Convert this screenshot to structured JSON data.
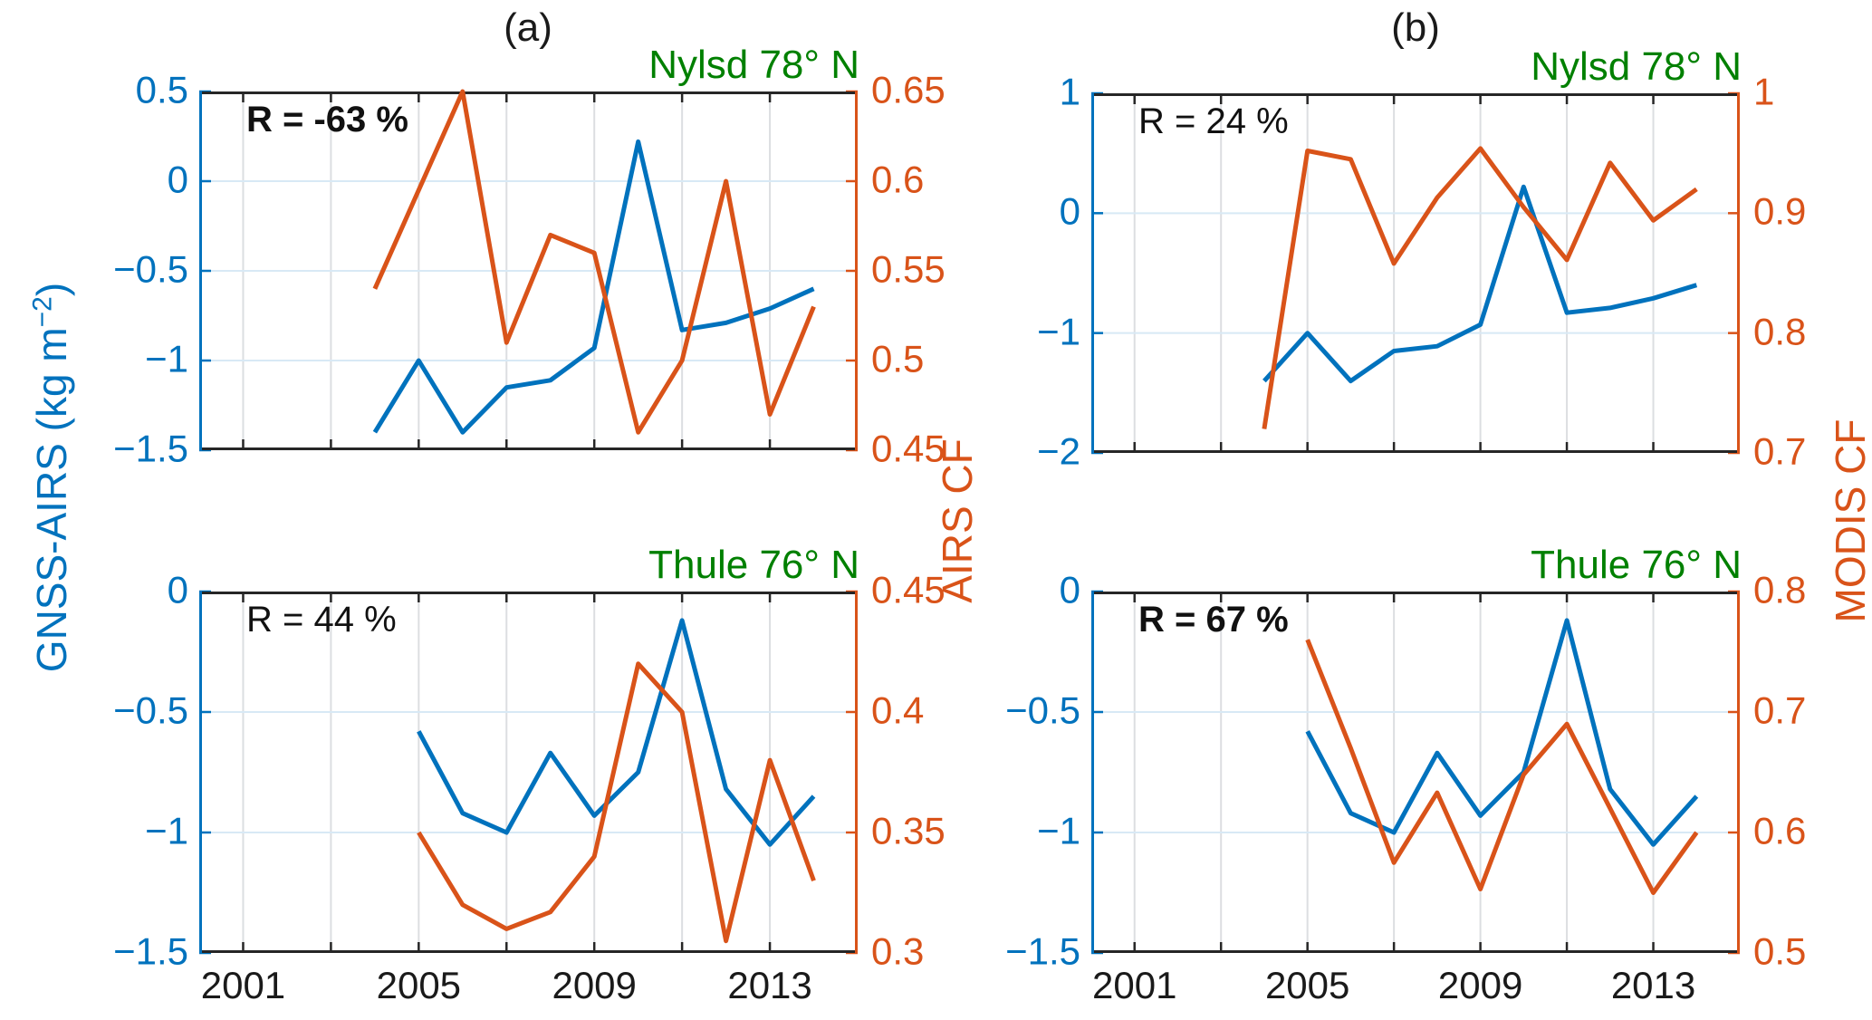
{
  "figure": {
    "column_titles": {
      "a": "(a)",
      "b": "(b)"
    },
    "ylabel_left": {
      "pre": "GNSS-AIRS (kg m",
      "sup": "−2",
      "post": ")"
    },
    "ylabel_right_a": "AIRS CF",
    "ylabel_right_b": "MODIS CF",
    "colors": {
      "blue": "#0072BD",
      "orange": "#D95319",
      "green": "#008000",
      "axis_dark": "#262626",
      "grid_vertical": "#dcdee1",
      "grid_horizontal": "#d8e9f5",
      "background": "#ffffff"
    }
  },
  "chart_data": {
    "type": "line",
    "x_axis": {
      "lim": [
        2000,
        2015
      ],
      "gridline_years": [
        2001,
        2003,
        2005,
        2007,
        2009,
        2011,
        2013
      ],
      "tick_labels": [
        {
          "v": 2001,
          "t": "2001"
        },
        {
          "v": 2005,
          "t": "2005"
        },
        {
          "v": 2009,
          "t": "2009"
        },
        {
          "v": 2013,
          "t": "2013"
        }
      ]
    },
    "series_data": {
      "gnss_airs_nylsd": [
        [
          2004,
          -1.4
        ],
        [
          2005,
          -1.0
        ],
        [
          2006,
          -1.4
        ],
        [
          2007,
          -1.15
        ],
        [
          2008,
          -1.11
        ],
        [
          2009,
          -0.93
        ],
        [
          2010,
          0.22
        ],
        [
          2011,
          -0.83
        ],
        [
          2012,
          -0.79
        ],
        [
          2013,
          -0.71
        ],
        [
          2014,
          -0.6
        ]
      ],
      "airs_cf_nylsd": [
        [
          2004,
          0.54
        ],
        [
          2005,
          0.595
        ],
        [
          2006,
          0.65
        ],
        [
          2007,
          0.51
        ],
        [
          2008,
          0.57
        ],
        [
          2009,
          0.56
        ],
        [
          2010,
          0.46
        ],
        [
          2011,
          0.5
        ],
        [
          2012,
          0.6
        ],
        [
          2013,
          0.47
        ],
        [
          2014,
          0.53
        ]
      ],
      "modis_cf_nylsd": [
        [
          2004,
          0.72
        ],
        [
          2005,
          0.952
        ],
        [
          2006,
          0.945
        ],
        [
          2007,
          0.858
        ],
        [
          2008,
          0.913
        ],
        [
          2009,
          0.954
        ],
        [
          2010,
          0.905
        ],
        [
          2011,
          0.861
        ],
        [
          2012,
          0.942
        ],
        [
          2013,
          0.894
        ],
        [
          2014,
          0.92
        ]
      ],
      "gnss_airs_thule": [
        [
          2005,
          -0.58
        ],
        [
          2006,
          -0.92
        ],
        [
          2007,
          -1.0
        ],
        [
          2008,
          -0.67
        ],
        [
          2009,
          -0.93
        ],
        [
          2010,
          -0.75
        ],
        [
          2011,
          -0.12
        ],
        [
          2012,
          -0.82
        ],
        [
          2013,
          -1.05
        ],
        [
          2014,
          -0.85
        ]
      ],
      "airs_cf_thule": [
        [
          2005,
          0.35
        ],
        [
          2006,
          0.32
        ],
        [
          2007,
          0.31
        ],
        [
          2008,
          0.317
        ],
        [
          2009,
          0.34
        ],
        [
          2010,
          0.42
        ],
        [
          2011,
          0.4
        ],
        [
          2012,
          0.305
        ],
        [
          2013,
          0.38
        ],
        [
          2014,
          0.33
        ]
      ],
      "modis_cf_thule": [
        [
          2005,
          0.76
        ],
        [
          2006,
          0.67
        ],
        [
          2007,
          0.575
        ],
        [
          2008,
          0.633
        ],
        [
          2009,
          0.553
        ],
        [
          2010,
          0.648
        ],
        [
          2011,
          0.69
        ],
        [
          2012,
          0.62
        ],
        [
          2013,
          0.55
        ],
        [
          2014,
          0.6
        ]
      ]
    },
    "panels": [
      {
        "id": "a_nylsd",
        "column": "a",
        "row": "top",
        "site": "Nylsd 78° N",
        "r_label": "R = -63 %",
        "r_bold": true,
        "left_axis": {
          "lim": [
            -1.5,
            0.5
          ],
          "ticks": [
            {
              "v": 0.5,
              "t": "0.5"
            },
            {
              "v": 0,
              "t": "0"
            },
            {
              "v": -0.5,
              "t": "−0.5"
            },
            {
              "v": -1,
              "t": "−1"
            },
            {
              "v": -1.5,
              "t": "−1.5"
            }
          ]
        },
        "right_axis": {
          "name": "AIRS CF",
          "lim": [
            0.45,
            0.65
          ],
          "ticks": [
            {
              "v": 0.65,
              "t": "0.65"
            },
            {
              "v": 0.6,
              "t": "0.6"
            },
            {
              "v": 0.55,
              "t": "0.55"
            },
            {
              "v": 0.5,
              "t": "0.5"
            },
            {
              "v": 0.45,
              "t": "0.45"
            }
          ]
        },
        "h_grid": [
          0,
          -0.5,
          -1
        ],
        "series": [
          {
            "name": "GNSS-AIRS",
            "data": "gnss_airs_nylsd",
            "axis": "left",
            "color": "blue"
          },
          {
            "name": "AIRS CF",
            "data": "airs_cf_nylsd",
            "axis": "right",
            "color": "orange"
          }
        ],
        "show_x_labels": false
      },
      {
        "id": "b_nylsd",
        "column": "b",
        "row": "top",
        "site": "Nylsd 78° N",
        "r_label": "R = 24 %",
        "r_bold": false,
        "left_axis": {
          "lim": [
            -2,
            1
          ],
          "ticks": [
            {
              "v": 1,
              "t": "1"
            },
            {
              "v": 0,
              "t": "0"
            },
            {
              "v": -1,
              "t": "−1"
            },
            {
              "v": -2,
              "t": "−2"
            }
          ]
        },
        "right_axis": {
          "name": "MODIS CF",
          "lim": [
            0.7,
            1
          ],
          "ticks": [
            {
              "v": 1,
              "t": "1"
            },
            {
              "v": 0.9,
              "t": "0.9"
            },
            {
              "v": 0.8,
              "t": "0.8"
            },
            {
              "v": 0.7,
              "t": "0.7"
            }
          ]
        },
        "h_grid": [
          0,
          -1
        ],
        "series": [
          {
            "name": "GNSS-AIRS",
            "data": "gnss_airs_nylsd",
            "axis": "left",
            "color": "blue"
          },
          {
            "name": "MODIS CF",
            "data": "modis_cf_nylsd",
            "axis": "right",
            "color": "orange"
          }
        ],
        "show_x_labels": false
      },
      {
        "id": "a_thule",
        "column": "a",
        "row": "bottom",
        "site": "Thule 76° N",
        "r_label": "R = 44 %",
        "r_bold": false,
        "left_axis": {
          "lim": [
            -1.5,
            0
          ],
          "ticks": [
            {
              "v": 0,
              "t": "0"
            },
            {
              "v": -0.5,
              "t": "−0.5"
            },
            {
              "v": -1,
              "t": "−1"
            },
            {
              "v": -1.5,
              "t": "−1.5"
            }
          ]
        },
        "right_axis": {
          "name": "AIRS CF",
          "lim": [
            0.3,
            0.45
          ],
          "ticks": [
            {
              "v": 0.45,
              "t": "0.45"
            },
            {
              "v": 0.4,
              "t": "0.4"
            },
            {
              "v": 0.35,
              "t": "0.35"
            },
            {
              "v": 0.3,
              "t": "0.3"
            }
          ]
        },
        "h_grid": [
          -0.5,
          -1
        ],
        "series": [
          {
            "name": "GNSS-AIRS",
            "data": "gnss_airs_thule",
            "axis": "left",
            "color": "blue"
          },
          {
            "name": "AIRS CF",
            "data": "airs_cf_thule",
            "axis": "right",
            "color": "orange"
          }
        ],
        "show_x_labels": true
      },
      {
        "id": "b_thule",
        "column": "b",
        "row": "bottom",
        "site": "Thule 76° N",
        "r_label": "R = 67 %",
        "r_bold": true,
        "left_axis": {
          "lim": [
            -1.5,
            0
          ],
          "ticks": [
            {
              "v": 0,
              "t": "0"
            },
            {
              "v": -0.5,
              "t": "−0.5"
            },
            {
              "v": -1,
              "t": "−1"
            },
            {
              "v": -1.5,
              "t": "−1.5"
            }
          ]
        },
        "right_axis": {
          "name": "MODIS CF",
          "lim": [
            0.5,
            0.8
          ],
          "ticks": [
            {
              "v": 0.8,
              "t": "0.8"
            },
            {
              "v": 0.7,
              "t": "0.7"
            },
            {
              "v": 0.6,
              "t": "0.6"
            },
            {
              "v": 0.5,
              "t": "0.5"
            }
          ]
        },
        "h_grid": [
          -0.5,
          -1
        ],
        "series": [
          {
            "name": "GNSS-AIRS",
            "data": "gnss_airs_thule",
            "axis": "left",
            "color": "blue"
          },
          {
            "name": "MODIS CF",
            "data": "modis_cf_thule",
            "axis": "right",
            "color": "orange"
          }
        ],
        "show_x_labels": true
      }
    ]
  }
}
